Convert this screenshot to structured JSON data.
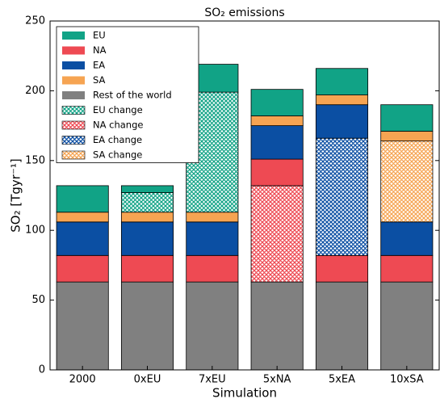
{
  "chart_data": {
    "type": "stacked_bar",
    "title": "SO₂ emissions",
    "xlabel": "Simulation",
    "ylabel": "SO₂ [Tgyr⁻¹]",
    "categories": [
      "2000",
      "0xEU",
      "7xEU",
      "5xNA",
      "5xEA",
      "10xSA"
    ],
    "series": [
      {
        "name": "EU",
        "color": "#11a386",
        "hatch": false,
        "values": [
          19,
          5,
          20,
          19,
          19,
          19
        ]
      },
      {
        "name": "NA",
        "color": "#ee4a53",
        "hatch": false,
        "values": [
          19,
          19,
          19,
          19,
          19,
          19
        ]
      },
      {
        "name": "EA",
        "color": "#0b4fa3",
        "hatch": false,
        "values": [
          24,
          24,
          24,
          24,
          24,
          24
        ]
      },
      {
        "name": "SA",
        "color": "#f6a452",
        "hatch": false,
        "values": [
          7,
          7,
          7,
          7,
          7,
          7
        ]
      },
      {
        "name": "Rest of the world",
        "color": "#808080",
        "hatch": false,
        "values": [
          63,
          63,
          63,
          63,
          63,
          63
        ]
      },
      {
        "name": "EU change",
        "color": "#11a386",
        "hatch": true,
        "values": [
          null,
          14,
          86,
          null,
          null,
          null
        ]
      },
      {
        "name": "NA change",
        "color": "#ee4a53",
        "hatch": true,
        "values": [
          null,
          null,
          null,
          69,
          null,
          null
        ]
      },
      {
        "name": "EA change",
        "color": "#0b4fa3",
        "hatch": true,
        "values": [
          null,
          null,
          null,
          null,
          84,
          null
        ]
      },
      {
        "name": "SA change",
        "color": "#f6a452",
        "hatch": true,
        "values": [
          null,
          null,
          null,
          null,
          null,
          58
        ]
      }
    ],
    "stack_order": [
      4,
      6,
      1,
      7,
      2,
      8,
      3,
      5,
      0
    ],
    "ylim": [
      0,
      250
    ],
    "yticks": [
      0,
      50,
      100,
      150,
      200,
      250
    ],
    "legend": "upper left"
  }
}
